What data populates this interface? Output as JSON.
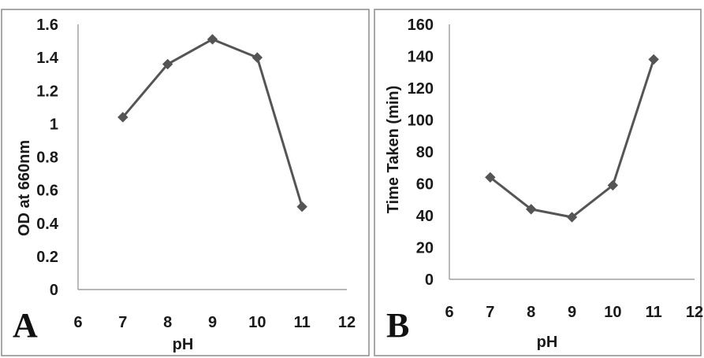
{
  "chart_data": [
    {
      "type": "line",
      "panel": "A",
      "xlabel": "pH",
      "ylabel": "OD at 660nm",
      "xlim": [
        6,
        12
      ],
      "ylim": [
        0,
        1.6
      ],
      "xticks": [
        "6",
        "7",
        "8",
        "9",
        "10",
        "11",
        "12"
      ],
      "yticks": [
        "0",
        "0.2",
        "0.4",
        "0.6",
        "0.8",
        "1",
        "1.2",
        "1.4",
        "1.6"
      ],
      "x": [
        7,
        8,
        9,
        10,
        11
      ],
      "values": [
        1.04,
        1.36,
        1.51,
        1.4,
        0.5
      ],
      "grid": false,
      "legend": "none",
      "color": "#555555"
    },
    {
      "type": "line",
      "panel": "B",
      "xlabel": "pH",
      "ylabel": "Time Taken (min)",
      "xlim": [
        6,
        12
      ],
      "ylim": [
        0,
        160
      ],
      "xticks": [
        "6",
        "7",
        "8",
        "9",
        "10",
        "11",
        "12"
      ],
      "yticks": [
        "0",
        "20",
        "40",
        "60",
        "80",
        "100",
        "120",
        "140",
        "160"
      ],
      "x": [
        7,
        8,
        9,
        10,
        11
      ],
      "values": [
        64,
        44,
        39,
        59,
        138
      ],
      "grid": false,
      "legend": "none",
      "color": "#555555"
    }
  ]
}
